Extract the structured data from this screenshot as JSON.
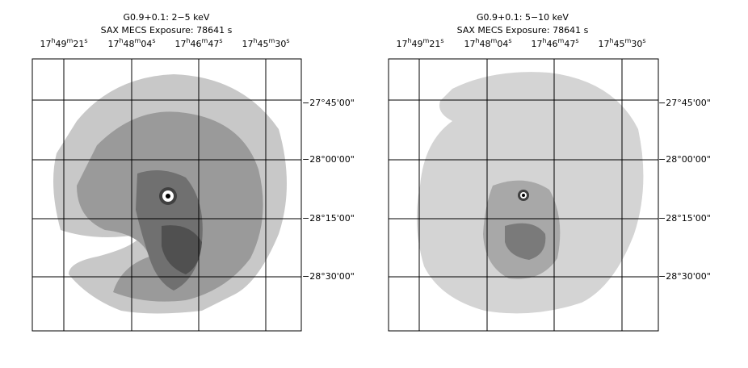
{
  "panels": [
    {
      "title": "G0.9+0.1:  2−5 keV",
      "subtitle": "SAX MECS    Exposure: 78641 s",
      "ra_labels": [
        "17h49m21s",
        "17h48m04s",
        "17h46m47s",
        "17h45m30s"
      ],
      "dec_labels": [
        "−27°45'00\"",
        "−28°00'00\"",
        "−28°15'00\"",
        "−28°30'00\""
      ]
    },
    {
      "title": "G0.9+0.1:  5−10 keV",
      "subtitle": "SAX MECS    Exposure: 78641 s",
      "ra_labels": [
        "17h49m21s",
        "17h48m04s",
        "17h46m47s",
        "17h45m30s"
      ],
      "dec_labels": [
        "−27°45'00\"",
        "−28°00'00\"",
        "−28°15'00\"",
        "−28°30'00\""
      ]
    }
  ]
}
